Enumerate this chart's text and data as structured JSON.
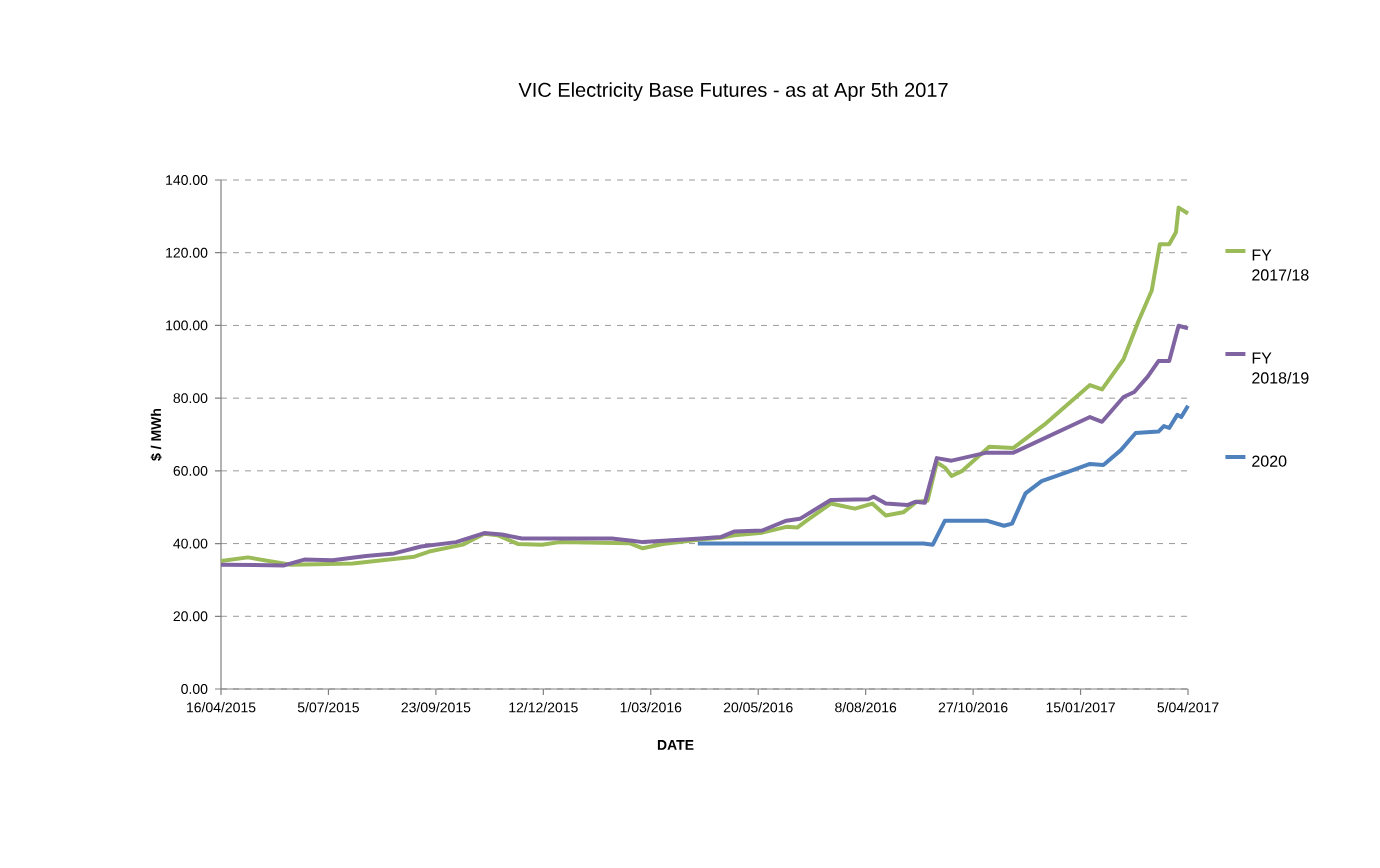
{
  "chart_data": {
    "type": "line",
    "title": "VIC Electricity Base Futures  - as at Apr 5th 2017",
    "xlabel": "DATE",
    "ylabel": "$ / MWh",
    "xlim": [
      "2015-04-16",
      "2017-04-05"
    ],
    "xticks": [
      {
        "value": "2015-04-16",
        "label": "16/04/2015"
      },
      {
        "value": "2015-07-05",
        "label": "5/07/2015"
      },
      {
        "value": "2015-09-23",
        "label": "23/09/2015"
      },
      {
        "value": "2015-12-12",
        "label": "12/12/2015"
      },
      {
        "value": "2016-03-01",
        "label": "1/03/2016"
      },
      {
        "value": "2016-05-20",
        "label": "20/05/2016"
      },
      {
        "value": "2016-08-08",
        "label": "8/08/2016"
      },
      {
        "value": "2016-10-27",
        "label": "27/10/2016"
      },
      {
        "value": "2017-01-15",
        "label": "15/01/2017"
      },
      {
        "value": "2017-04-05",
        "label": "5/04/2017"
      }
    ],
    "ylim": [
      0,
      140
    ],
    "yticks": [
      {
        "value": 0,
        "label": "0.00"
      },
      {
        "value": 20,
        "label": "20.00"
      },
      {
        "value": 40,
        "label": "40.00"
      },
      {
        "value": 60,
        "label": "60.00"
      },
      {
        "value": 80,
        "label": "80.00"
      },
      {
        "value": 100,
        "label": "100.00"
      },
      {
        "value": 120,
        "label": "120.00"
      },
      {
        "value": 140,
        "label": "140.00"
      }
    ],
    "grid": "y",
    "legend": "right",
    "marker": "none",
    "line_style": "solid",
    "series": [
      {
        "name": "FY 2017/18",
        "color": "#9bbb59",
        "x": [
          "2015-04-16",
          "2015-05-06",
          "2015-06-07",
          "2015-07-23",
          "2015-09-07",
          "2015-09-18",
          "2015-10-13",
          "2015-10-29",
          "2015-11-08",
          "2015-11-23",
          "2015-12-11",
          "2015-12-24",
          "2016-02-14",
          "2016-02-24",
          "2016-03-10",
          "2016-04-07",
          "2016-04-22",
          "2016-05-02",
          "2016-05-23",
          "2016-06-10",
          "2016-06-18",
          "2016-06-25",
          "2016-07-13",
          "2016-07-31",
          "2016-08-13",
          "2016-08-23",
          "2016-09-05",
          "2016-09-15",
          "2016-09-23",
          "2016-09-30",
          "2016-10-06",
          "2016-10-11",
          "2016-10-19",
          "2016-11-08",
          "2016-11-26",
          "2016-12-19",
          "2017-01-22",
          "2017-01-31",
          "2017-02-16",
          "2017-02-27",
          "2017-03-09",
          "2017-03-15",
          "2017-03-22",
          "2017-03-27",
          "2017-03-29",
          "2017-04-05"
        ],
        "values": [
          35.2,
          36.2,
          34.2,
          34.5,
          36.4,
          37.8,
          39.7,
          42.7,
          42.3,
          39.9,
          39.7,
          40.4,
          40.1,
          38.7,
          39.9,
          41.1,
          41.6,
          42.3,
          43.0,
          44.6,
          44.4,
          46.3,
          51.0,
          49.6,
          51.0,
          47.7,
          48.6,
          51.5,
          51.8,
          62.3,
          60.9,
          58.6,
          60.0,
          66.6,
          66.3,
          72.7,
          83.6,
          82.4,
          90.7,
          101.1,
          109.6,
          122.3,
          122.3,
          125.6,
          132.4,
          130.8
        ]
      },
      {
        "name": "FY 2018/19",
        "color": "#8064a2",
        "x": [
          "2015-04-16",
          "2015-06-02",
          "2015-06-17",
          "2015-07-08",
          "2015-08-02",
          "2015-08-23",
          "2015-09-12",
          "2015-10-08",
          "2015-10-29",
          "2015-11-11",
          "2015-11-26",
          "2016-02-01",
          "2016-02-16",
          "2016-02-24",
          "2016-04-07",
          "2016-04-22",
          "2016-05-02",
          "2016-05-23",
          "2016-06-10",
          "2016-06-20",
          "2016-07-13",
          "2016-08-10",
          "2016-08-14",
          "2016-08-23",
          "2016-09-08",
          "2016-09-14",
          "2016-09-21",
          "2016-09-30",
          "2016-10-11",
          "2016-11-06",
          "2016-11-26",
          "2017-01-22",
          "2017-01-31",
          "2017-02-16",
          "2017-02-24",
          "2017-03-06",
          "2017-03-14",
          "2017-03-22",
          "2017-03-29",
          "2017-04-05"
        ],
        "values": [
          34.2,
          34.0,
          35.6,
          35.4,
          36.6,
          37.3,
          39.2,
          40.4,
          42.9,
          42.5,
          41.4,
          41.4,
          40.8,
          40.4,
          41.4,
          41.8,
          43.3,
          43.6,
          46.3,
          46.8,
          52.0,
          52.2,
          52.9,
          51.0,
          50.6,
          51.5,
          51.2,
          63.5,
          62.8,
          65.0,
          65.0,
          74.8,
          73.5,
          80.3,
          81.7,
          85.9,
          90.2,
          90.2,
          99.9,
          99.2
        ]
      },
      {
        "name": "2020",
        "color": "#4f81bd",
        "x": [
          "2016-04-05",
          "2016-09-20",
          "2016-09-27",
          "2016-10-06",
          "2016-11-06",
          "2016-11-19",
          "2016-11-25",
          "2016-12-05",
          "2016-12-17",
          "2017-01-04",
          "2017-01-22",
          "2017-02-01",
          "2017-02-14",
          "2017-02-25",
          "2017-03-14",
          "2017-03-18",
          "2017-03-22",
          "2017-03-28",
          "2017-03-31",
          "2017-04-05"
        ],
        "values": [
          40.0,
          40.0,
          39.7,
          46.3,
          46.3,
          44.9,
          45.5,
          53.8,
          57.2,
          59.5,
          61.9,
          61.6,
          65.7,
          70.4,
          70.8,
          72.3,
          71.8,
          75.4,
          74.8,
          77.9
        ]
      }
    ]
  }
}
